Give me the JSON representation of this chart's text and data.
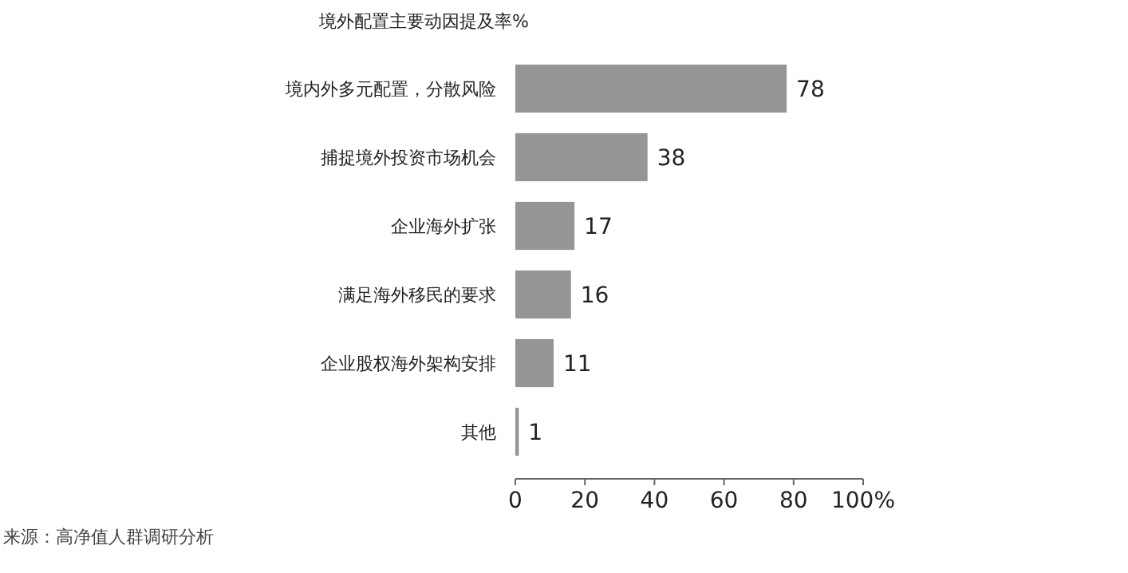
{
  "chart_data": {
    "type": "bar",
    "orientation": "horizontal",
    "title": "境外配置主要动因提及率%",
    "categories": [
      "境内外多元配置，分散风险",
      "捕捉境外投资市场机会",
      "企业海外扩张",
      "满足海外移民的要求",
      "企业股权海外架构安排",
      "其他"
    ],
    "values": [
      78,
      38,
      17,
      16,
      11,
      1
    ],
    "color": "#959595",
    "data_labels": true,
    "xlim": [
      0,
      100
    ],
    "xticks": [
      0,
      20,
      40,
      60,
      80,
      {
        "value": 100,
        "label": "100%"
      }
    ],
    "grid": false,
    "annotations": [
      "来源：高净值人群调研分析"
    ]
  }
}
